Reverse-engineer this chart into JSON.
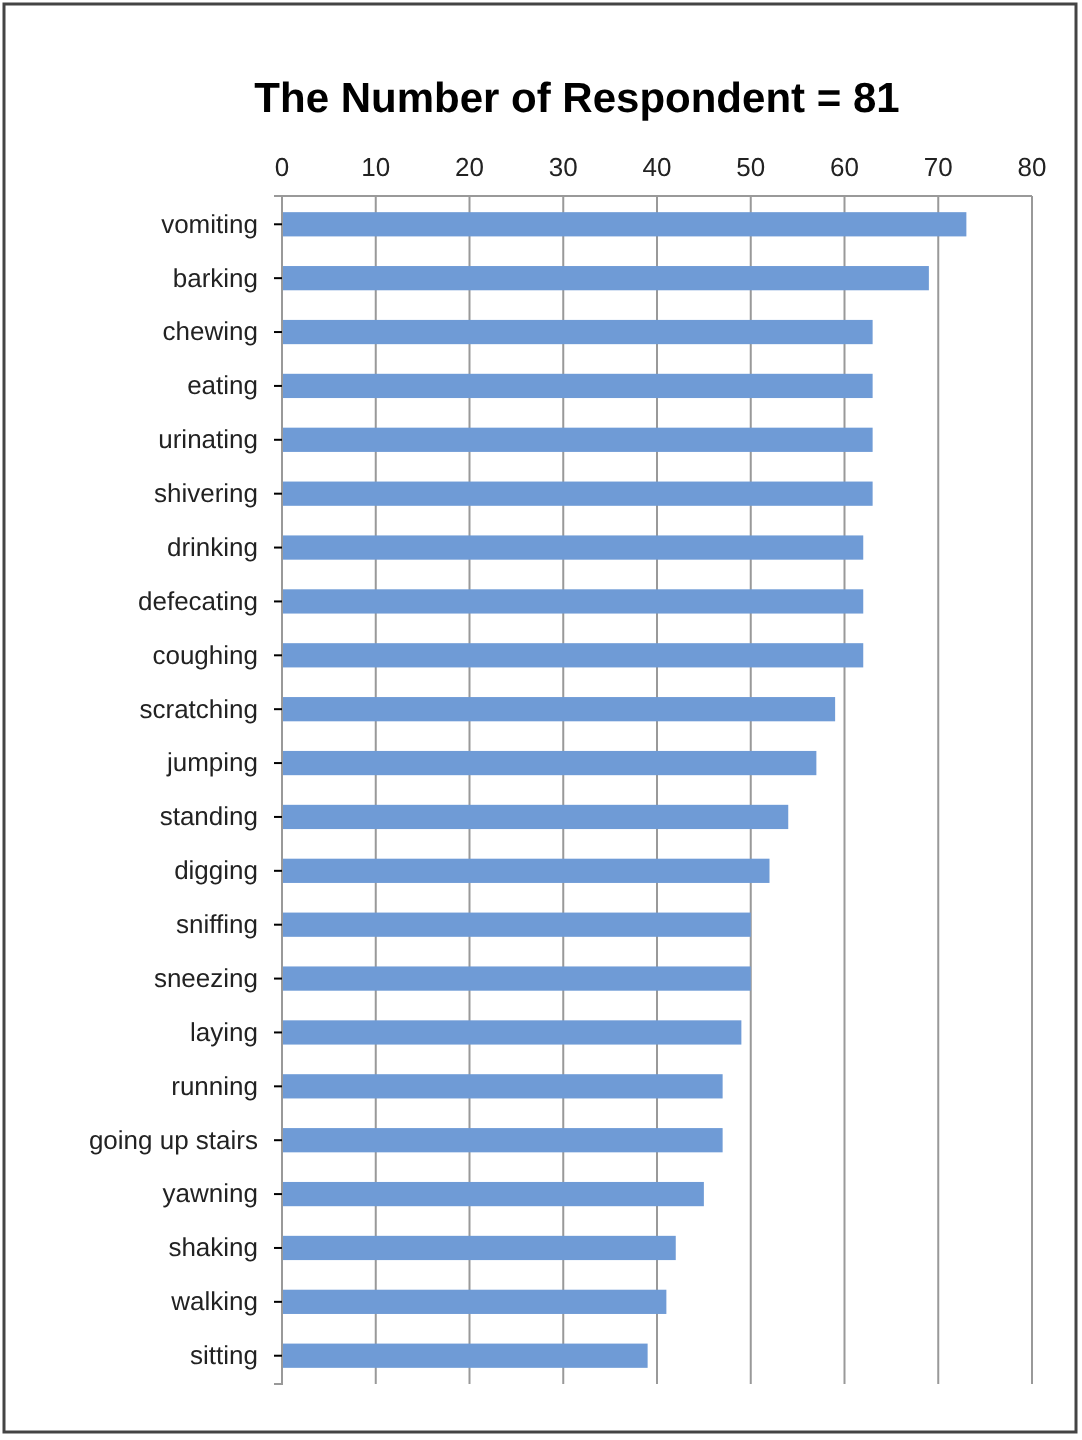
{
  "chart_data": {
    "type": "bar",
    "orientation": "horizontal",
    "title": "The Number of Respondent = 81",
    "categories": [
      "vomiting",
      "barking",
      "chewing",
      "eating",
      "urinating",
      "shivering",
      "drinking",
      "defecating",
      "coughing",
      "scratching",
      "jumping",
      "standing",
      "digging",
      "sniffing",
      "sneezing",
      "laying",
      "running",
      "going up stairs",
      "yawning",
      "shaking",
      "walking",
      "sitting"
    ],
    "values": [
      73,
      69,
      63,
      63,
      63,
      63,
      62,
      62,
      62,
      59,
      57,
      54,
      52,
      50,
      50,
      49,
      47,
      47,
      45,
      42,
      41,
      39
    ],
    "color": "#6f9bd6",
    "xlim": [
      0,
      80
    ],
    "xticks": [
      0,
      10,
      20,
      30,
      40,
      50,
      60,
      70,
      80
    ],
    "grid": "x"
  }
}
